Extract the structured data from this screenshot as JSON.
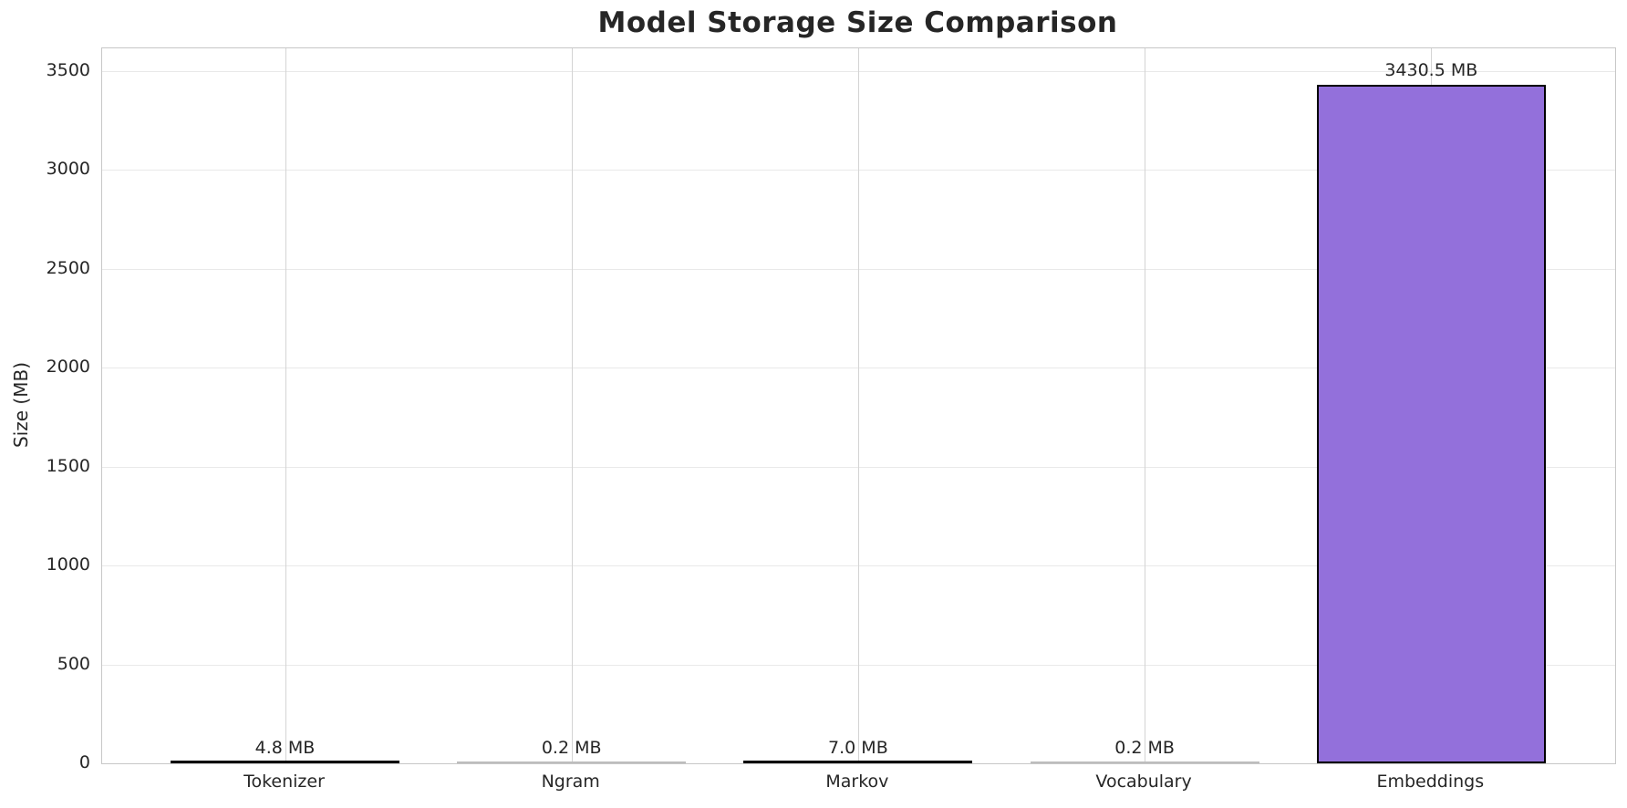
{
  "title": "Model Storage Size Comparison",
  "chart_data": {
    "type": "bar",
    "title": "Model Storage Size Comparison",
    "xlabel": "",
    "ylabel": "Size (MB)",
    "categories": [
      "Tokenizer",
      "Ngram",
      "Markov",
      "Vocabulary",
      "Embeddings"
    ],
    "values": [
      4.8,
      0.2,
      7.0,
      0.2,
      3430.5
    ],
    "bar_labels": [
      "4.8 MB",
      "0.2 MB",
      "7.0 MB",
      "0.2 MB",
      "3430.5 MB"
    ],
    "yticks": [
      0,
      500,
      1000,
      1500,
      2000,
      2500,
      3000,
      3500
    ],
    "ylim": [
      0,
      3615
    ],
    "grid": true,
    "legend_position": "none",
    "bar_color": "#9370DB",
    "bar_edge_color": "#000000",
    "grid_color_vertical": "#d4d4d4",
    "grid_color_horizontal": "#e9e9e9",
    "text_color": "#262626"
  }
}
